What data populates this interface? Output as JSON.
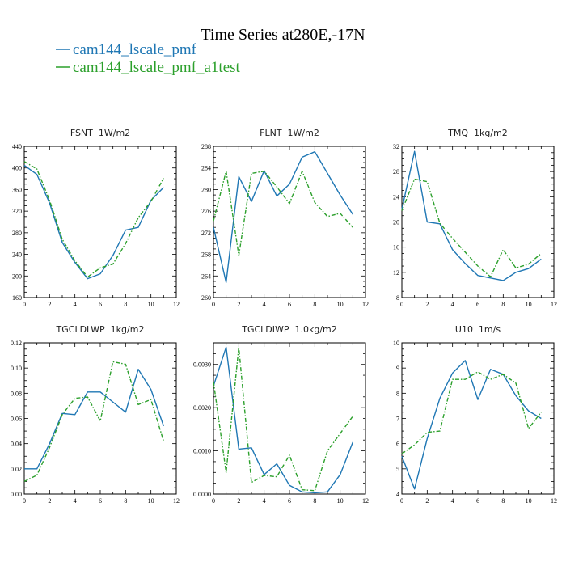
{
  "title": "Time Series at280E,-17N",
  "legend": [
    {
      "label": "cam144_lscale_pmf",
      "color": "#1f77b4"
    },
    {
      "label": "cam144_lscale_pmf_a1test",
      "color": "#2ca02c"
    }
  ],
  "chart_data": [
    {
      "type": "line",
      "title": "FSNT  1W/m2",
      "x": [
        0,
        1,
        2,
        3,
        4,
        5,
        6,
        7,
        8,
        9,
        10,
        11
      ],
      "xlim": [
        0,
        12
      ],
      "xticks": [
        "0",
        "2",
        "4",
        "6",
        "8",
        "10",
        "12"
      ],
      "ylim": [
        160,
        440
      ],
      "yticks": [
        "160",
        "200",
        "240",
        "280",
        "320",
        "360",
        "400",
        "440"
      ],
      "series": [
        {
          "name": "cam144_lscale_pmf",
          "color": "#1f77b4",
          "dashed": false,
          "values": [
            405,
            388,
            335,
            262,
            225,
            195,
            204,
            238,
            285,
            290,
            340,
            364
          ]
        },
        {
          "name": "cam144_lscale_pmf_a1test",
          "color": "#2ca02c",
          "dashed": true,
          "values": [
            412,
            398,
            340,
            268,
            228,
            198,
            215,
            222,
            260,
            308,
            338,
            381
          ]
        }
      ]
    },
    {
      "type": "line",
      "title": "FLNT  1W/m2",
      "x": [
        0,
        1,
        2,
        3,
        4,
        5,
        6,
        7,
        8,
        9,
        10,
        11
      ],
      "xlim": [
        0,
        12
      ],
      "xticks": [
        "0",
        "2",
        "4",
        "6",
        "8",
        "10",
        "12"
      ],
      "ylim": [
        260,
        288
      ],
      "yticks": [
        "260",
        "264",
        "268",
        "272",
        "276",
        "280",
        "284",
        "288"
      ],
      "series": [
        {
          "name": "cam144_lscale_pmf",
          "color": "#1f77b4",
          "dashed": false,
          "values": [
            273.0,
            262.8,
            282.4,
            277.8,
            283.5,
            278.8,
            281.0,
            286.0,
            287.0,
            283.0,
            279.0,
            275.4
          ]
        },
        {
          "name": "cam144_lscale_pmf_a1test",
          "color": "#2ca02c",
          "dashed": true,
          "values": [
            274.2,
            283.4,
            267.8,
            283.0,
            283.4,
            280.5,
            277.4,
            283.4,
            277.6,
            275.0,
            275.6,
            273.0
          ]
        }
      ]
    },
    {
      "type": "line",
      "title": "TMQ  1kg/m2",
      "x": [
        0,
        1,
        2,
        3,
        4,
        5,
        6,
        7,
        8,
        9,
        10,
        11
      ],
      "xlim": [
        0,
        12
      ],
      "xticks": [
        "0",
        "2",
        "4",
        "6",
        "8",
        "10",
        "12"
      ],
      "ylim": [
        8,
        32
      ],
      "yticks": [
        "8",
        "12",
        "16",
        "20",
        "24",
        "28",
        "32"
      ],
      "series": [
        {
          "name": "cam144_lscale_pmf",
          "color": "#1f77b4",
          "dashed": false,
          "values": [
            22.0,
            31.2,
            20.0,
            19.7,
            15.6,
            13.4,
            11.5,
            11.1,
            10.7,
            12.0,
            12.6,
            14.1
          ]
        },
        {
          "name": "cam144_lscale_pmf_a1test",
          "color": "#2ca02c",
          "dashed": true,
          "values": [
            21.8,
            26.8,
            26.4,
            19.8,
            17.4,
            15.2,
            13.0,
            11.3,
            15.6,
            12.7,
            13.3,
            15.0
          ]
        }
      ]
    },
    {
      "type": "line",
      "title": "TGCLDLWP  1kg/m2",
      "x": [
        0,
        1,
        2,
        3,
        4,
        5,
        6,
        7,
        8,
        9,
        10,
        11
      ],
      "xlim": [
        0,
        12
      ],
      "xticks": [
        "0",
        "2",
        "4",
        "6",
        "8",
        "10",
        "12"
      ],
      "ylim": [
        0.0,
        0.12
      ],
      "yticks": [
        "0.00",
        "0.02",
        "0.04",
        "0.06",
        "0.08",
        "0.10",
        "0.12"
      ],
      "series": [
        {
          "name": "cam144_lscale_pmf",
          "color": "#1f77b4",
          "dashed": false,
          "values": [
            0.02,
            0.02,
            0.04,
            0.064,
            0.063,
            0.081,
            0.081,
            0.073,
            0.065,
            0.099,
            0.083,
            0.054
          ]
        },
        {
          "name": "cam144_lscale_pmf_a1test",
          "color": "#2ca02c",
          "dashed": true,
          "values": [
            0.01,
            0.015,
            0.037,
            0.063,
            0.076,
            0.077,
            0.058,
            0.105,
            0.103,
            0.071,
            0.075,
            0.042
          ]
        }
      ]
    },
    {
      "type": "line",
      "title": "TGCLDIWP  1.0kg/m2",
      "x": [
        0,
        1,
        2,
        3,
        4,
        5,
        6,
        7,
        8,
        9,
        10,
        11
      ],
      "xlim": [
        0,
        12
      ],
      "xticks": [
        "0",
        "2",
        "4",
        "6",
        "8",
        "10",
        "12"
      ],
      "ylim": [
        0.0,
        0.0035
      ],
      "yticks": [
        "0.0000",
        "0.0010",
        "0.0020",
        "0.0030"
      ],
      "series": [
        {
          "name": "cam144_lscale_pmf",
          "color": "#1f77b4",
          "dashed": false,
          "values": [
            0.0025,
            0.0034,
            0.00104,
            0.00107,
            0.00045,
            0.0007,
            0.0002,
            5e-05,
            3e-05,
            5e-05,
            0.00045,
            0.0012
          ]
        },
        {
          "name": "cam144_lscale_pmf_a1test",
          "color": "#2ca02c",
          "dashed": true,
          "values": [
            0.0026,
            0.0005,
            0.0034,
            0.00027,
            0.00043,
            0.0004,
            0.0009,
            0.0001,
            8e-05,
            0.001,
            0.0014,
            0.0018
          ]
        }
      ]
    },
    {
      "type": "line",
      "title": "U10  1m/s",
      "x": [
        0,
        1,
        2,
        3,
        4,
        5,
        6,
        7,
        8,
        9,
        10,
        11
      ],
      "xlim": [
        0,
        12
      ],
      "xticks": [
        "0",
        "2",
        "4",
        "6",
        "8",
        "10",
        "12"
      ],
      "ylim": [
        4,
        10
      ],
      "yticks": [
        "4",
        "5",
        "6",
        "7",
        "8",
        "9",
        "10"
      ],
      "series": [
        {
          "name": "cam144_lscale_pmf",
          "color": "#1f77b4",
          "dashed": false,
          "values": [
            5.5,
            4.2,
            6.2,
            7.8,
            8.8,
            9.3,
            7.75,
            8.95,
            8.75,
            7.9,
            7.3,
            7.0
          ]
        },
        {
          "name": "cam144_lscale_pmf_a1test",
          "color": "#2ca02c",
          "dashed": true,
          "values": [
            5.6,
            5.95,
            6.45,
            6.5,
            8.55,
            8.55,
            8.85,
            8.55,
            8.75,
            8.4,
            6.6,
            7.25
          ]
        }
      ]
    }
  ]
}
